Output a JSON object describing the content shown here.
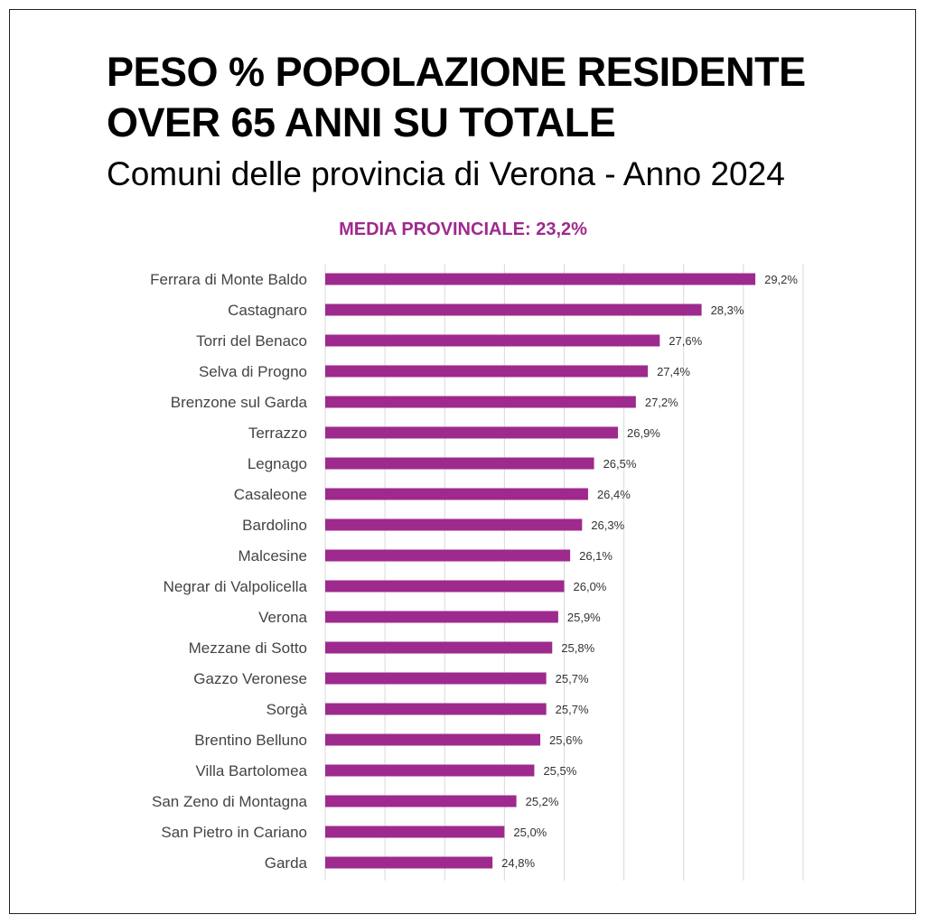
{
  "title_line1": "PESO % POPOLAZIONE RESIDENTE",
  "title_line2": "OVER 65 ANNI SU TOTALE",
  "subtitle": "Comuni delle provincia di Verona - Anno 2024",
  "media_label": "MEDIA PROVINCIALE: 23,2%",
  "colors": {
    "bar": "#9e2a8e",
    "accent": "#9e2a8e",
    "grid": "#d9d9d9"
  },
  "chart_data": {
    "type": "bar",
    "orientation": "horizontal",
    "title": "PESO % POPOLAZIONE RESIDENTE OVER 65 ANNI SU TOTALE",
    "subtitle": "Comuni delle provincia di Verona - Anno 2024",
    "annotation": "MEDIA PROVINCIALE: 23,2%",
    "categories": [
      "Ferrara di Monte Baldo",
      "Castagnaro",
      "Torri del Benaco",
      "Selva di Progno",
      "Brenzone sul Garda",
      "Terrazzo",
      "Legnago",
      "Casaleone",
      "Bardolino",
      "Malcesine",
      "Negrar di Valpolicella",
      "Verona",
      "Mezzane di Sotto",
      "Gazzo Veronese",
      "Sorgà",
      "Brentino Belluno",
      "Villa Bartolomea",
      "San Zeno di Montagna",
      "San Pietro in Cariano",
      "Garda"
    ],
    "values": [
      29.2,
      28.3,
      27.6,
      27.4,
      27.2,
      26.9,
      26.5,
      26.4,
      26.3,
      26.1,
      26.0,
      25.9,
      25.8,
      25.7,
      25.7,
      25.6,
      25.5,
      25.2,
      25.0,
      24.8
    ],
    "data_labels": [
      "29,2%",
      "28,3%",
      "27,6%",
      "27,4%",
      "27,2%",
      "26,9%",
      "26,5%",
      "26,4%",
      "26,3%",
      "26,1%",
      "26,0%",
      "25,9%",
      "25,8%",
      "25,7%",
      "25,7%",
      "25,6%",
      "25,5%",
      "25,2%",
      "25,0%",
      "24,8%"
    ],
    "xlim": [
      22,
      30
    ],
    "grid": true,
    "axis_tick_labels_shown": false,
    "legend": "none"
  }
}
